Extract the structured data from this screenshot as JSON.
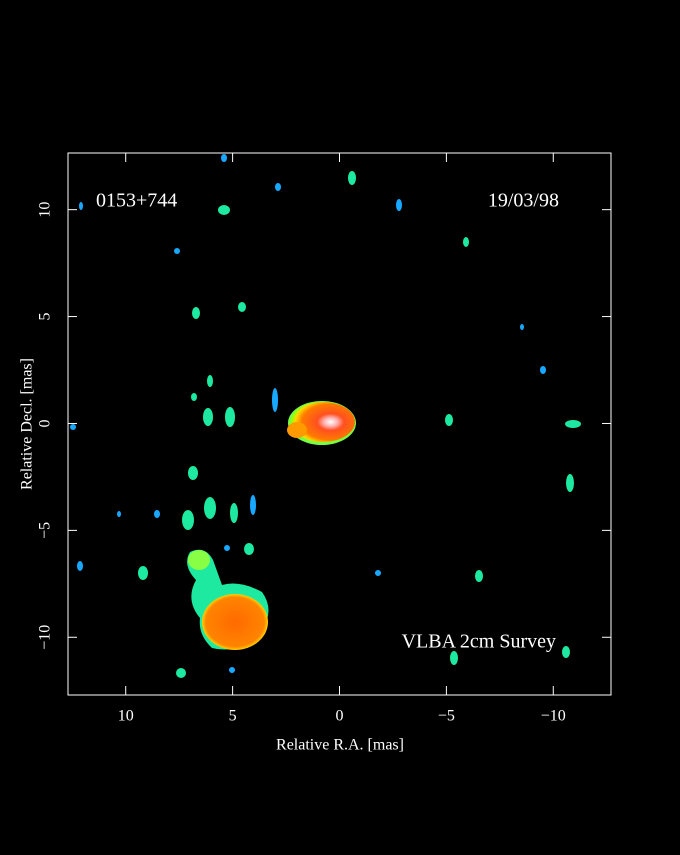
{
  "chart_data": {
    "type": "image",
    "title": "0153+744",
    "date": "19/03/98",
    "annotation": "VLBA 2cm Survey",
    "x_label": "Relative R.A. [mas]",
    "y_label": "Relative Decl. [mas]",
    "xlim": [
      12.7,
      -12.7
    ],
    "ylim": [
      -12.7,
      12.65
    ],
    "xticks": [
      10,
      5,
      0,
      {
        "value": -5,
        "label": "−5"
      },
      {
        "value": -10,
        "label": "−10"
      }
    ],
    "yticks": [
      {
        "value": -10,
        "label": "−10"
      },
      {
        "value": -5,
        "label": "−5"
      },
      0,
      5,
      10
    ]
  }
}
